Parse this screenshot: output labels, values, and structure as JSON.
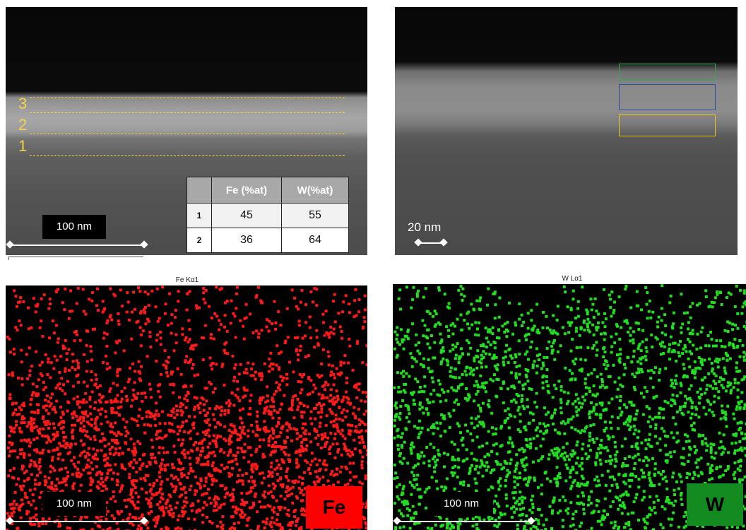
{
  "top_left": {
    "layers": [
      "3",
      "2",
      "1"
    ],
    "scale": "100 nm",
    "table": {
      "headers": [
        "",
        "Fe (%at)",
        "W(%at)"
      ],
      "rows": [
        {
          "label": "1",
          "fe": "45",
          "w": "55"
        },
        {
          "label": "2",
          "fe": "36",
          "w": "64"
        }
      ]
    }
  },
  "top_right": {
    "scale": "20 nm",
    "roi_colors": [
      "#2fa84f",
      "#2a4fa8",
      "#e8c61c"
    ]
  },
  "fe_map": {
    "title": "Fe Kα1",
    "scale": "100 nm",
    "badge": "Fe",
    "color": "#ff1a1a"
  },
  "w_map": {
    "title": "W Lα1",
    "scale": "100 nm",
    "badge": "W",
    "color": "#22dd22"
  }
}
